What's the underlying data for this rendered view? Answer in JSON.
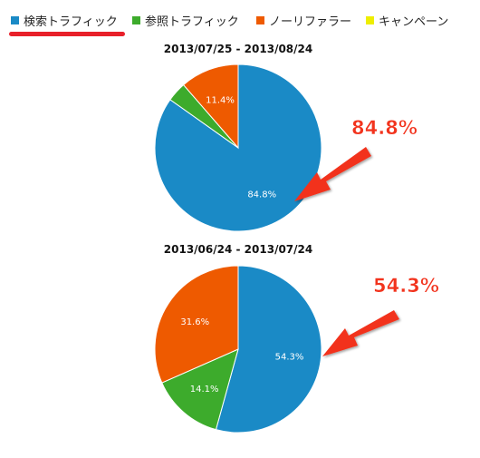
{
  "legend": {
    "items": [
      {
        "label": "検索トラフィック",
        "color": "#1a8ac6"
      },
      {
        "label": "参照トラフィック",
        "color": "#3dab2c"
      },
      {
        "label": "ノーリファラー",
        "color": "#ee5a00"
      },
      {
        "label": "キャンペーン",
        "color": "#eeee00"
      }
    ]
  },
  "callouts": [
    "84.8%",
    "54.3%"
  ],
  "chart_data": [
    {
      "type": "pie",
      "title": "2013/07/25 - 2013/08/24",
      "labels": [
        "検索トラフィック",
        "参照トラフィック",
        "ノーリファラー",
        "キャンペーン"
      ],
      "values": [
        84.8,
        3.8,
        11.4,
        0
      ],
      "value_labels": [
        "84.8%",
        "",
        "11.4%",
        ""
      ],
      "colors": [
        "#1a8ac6",
        "#3dab2c",
        "#ee5a00",
        "#eeee00"
      ]
    },
    {
      "type": "pie",
      "title": "2013/06/24 - 2013/07/24",
      "labels": [
        "検索トラフィック",
        "参照トラフィック",
        "ノーリファラー",
        "キャンペーン"
      ],
      "values": [
        54.3,
        14.1,
        31.6,
        0
      ],
      "value_labels": [
        "54.3%",
        "14.1%",
        "31.6%",
        ""
      ],
      "colors": [
        "#1a8ac6",
        "#3dab2c",
        "#ee5a00",
        "#eeee00"
      ]
    }
  ]
}
